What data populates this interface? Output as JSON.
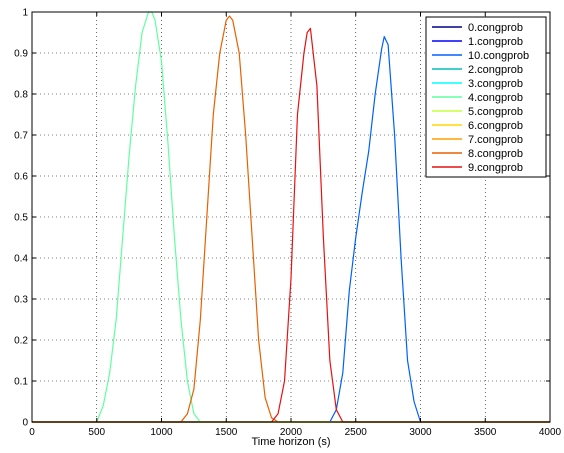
{
  "chart_data": {
    "type": "line",
    "xlabel": "Time horizon (s)",
    "ylabel": "",
    "title": "",
    "xlim": [
      0,
      4000
    ],
    "ylim": [
      0,
      1
    ],
    "xticks": [
      0,
      500,
      1000,
      1500,
      2000,
      2500,
      3000,
      3500,
      4000
    ],
    "yticks": [
      0,
      0.1,
      0.2,
      0.3,
      0.4,
      0.5,
      0.6,
      0.7,
      0.8,
      0.9,
      1
    ],
    "grid": true,
    "legend_position": "top-right",
    "series": [
      {
        "name": "0.congprob",
        "color": "#00008f",
        "x": [
          0,
          4000
        ],
        "y": [
          0,
          0
        ]
      },
      {
        "name": "1.congprob",
        "color": "#0000ff",
        "x": [
          0,
          4000
        ],
        "y": [
          0,
          0
        ]
      },
      {
        "name": "10.congprob",
        "color": "#0060ff",
        "x": [
          0,
          2300,
          2350,
          2400,
          2450,
          2500,
          2550,
          2600,
          2650,
          2700,
          2720,
          2750,
          2800,
          2850,
          2900,
          2950,
          3000,
          4000
        ],
        "y": [
          0,
          0,
          0.03,
          0.12,
          0.32,
          0.45,
          0.56,
          0.66,
          0.8,
          0.91,
          0.94,
          0.92,
          0.7,
          0.4,
          0.15,
          0.05,
          0,
          0
        ]
      },
      {
        "name": "2.congprob",
        "color": "#00bfbf",
        "x": [
          0,
          4000
        ],
        "y": [
          0,
          0
        ]
      },
      {
        "name": "3.congprob",
        "color": "#00ffff",
        "x": [
          0,
          4000
        ],
        "y": [
          0,
          0
        ]
      },
      {
        "name": "4.congprob",
        "color": "#60ff9f",
        "x": [
          0,
          500,
          550,
          600,
          650,
          700,
          750,
          800,
          850,
          900,
          925,
          950,
          1000,
          1050,
          1100,
          1150,
          1200,
          1250,
          1300,
          4000
        ],
        "y": [
          0,
          0,
          0.04,
          0.12,
          0.25,
          0.45,
          0.65,
          0.82,
          0.95,
          1.0,
          1.0,
          0.98,
          0.88,
          0.68,
          0.45,
          0.25,
          0.1,
          0.02,
          0,
          0
        ]
      },
      {
        "name": "5.congprob",
        "color": "#c8ff40",
        "x": [
          0,
          4000
        ],
        "y": [
          0,
          0
        ]
      },
      {
        "name": "6.congprob",
        "color": "#ffd800",
        "x": [
          0,
          4000
        ],
        "y": [
          0,
          0
        ]
      },
      {
        "name": "7.congprob",
        "color": "#ff9f00",
        "x": [
          0,
          4000
        ],
        "y": [
          0,
          0
        ]
      },
      {
        "name": "8.congprob",
        "color": "#e86000",
        "x": [
          0,
          1150,
          1200,
          1250,
          1300,
          1350,
          1400,
          1450,
          1500,
          1525,
          1550,
          1600,
          1650,
          1700,
          1750,
          1800,
          1850,
          1900,
          4000
        ],
        "y": [
          0,
          0,
          0.02,
          0.08,
          0.25,
          0.5,
          0.75,
          0.9,
          0.98,
          0.99,
          0.98,
          0.9,
          0.7,
          0.45,
          0.2,
          0.06,
          0.01,
          0,
          0
        ]
      },
      {
        "name": "9.congprob",
        "color": "#e81010",
        "x": [
          0,
          1850,
          1900,
          1950,
          2000,
          2050,
          2100,
          2125,
          2150,
          2200,
          2250,
          2300,
          2350,
          2400,
          4000
        ],
        "y": [
          0,
          0,
          0.02,
          0.1,
          0.35,
          0.75,
          0.9,
          0.95,
          0.96,
          0.82,
          0.45,
          0.15,
          0.03,
          0,
          0
        ]
      }
    ]
  }
}
